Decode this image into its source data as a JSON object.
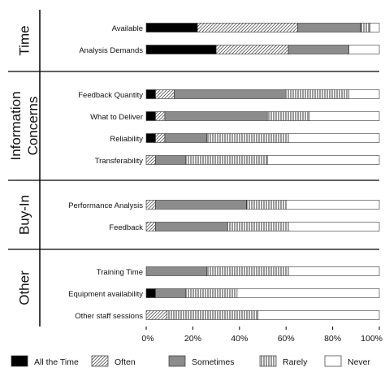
{
  "chart_data": {
    "type": "bar",
    "orientation": "horizontal",
    "stacked": true,
    "percent": true,
    "xlim": [
      0,
      100
    ],
    "xticks": [
      "0%",
      "20%",
      "40%",
      "60%",
      "80%",
      "100%"
    ],
    "grid": false,
    "legend_position": "bottom",
    "series": [
      {
        "name": "All the Time",
        "color": "#000000",
        "pattern": "solid"
      },
      {
        "name": "Often",
        "color": "#ffffff",
        "pattern": "diagonal"
      },
      {
        "name": "Sometimes",
        "color": "#8c8c8c",
        "pattern": "solid"
      },
      {
        "name": "Rarely",
        "color": "#ffffff",
        "pattern": "vertical"
      },
      {
        "name": "Never",
        "color": "#ffffff",
        "pattern": "solid"
      }
    ],
    "groups": [
      {
        "name": "Time",
        "rows": [
          {
            "label": "Available",
            "values": [
              22,
              43,
              27,
              4,
              4
            ]
          },
          {
            "label": "Analysis Demands",
            "values": [
              30,
              31,
              26,
              0,
              13
            ]
          }
        ]
      },
      {
        "name": "Information Concerns",
        "rows": [
          {
            "label": "Feedback Quantity",
            "values": [
              4,
              8,
              48,
              27,
              13
            ]
          },
          {
            "label": "What to Deliver",
            "values": [
              4,
              4,
              44,
              18,
              30
            ]
          },
          {
            "label": "Reliability",
            "values": [
              4,
              4,
              18,
              35,
              39
            ]
          },
          {
            "label": "Transferability",
            "values": [
              0,
              4,
              13,
              35,
              48
            ]
          }
        ]
      },
      {
        "name": "Buy-In",
        "rows": [
          {
            "label": "Performance Analysis",
            "values": [
              0,
              4,
              39,
              17,
              40
            ]
          },
          {
            "label": "Feedback",
            "values": [
              0,
              4,
              31,
              26,
              39
            ]
          }
        ]
      },
      {
        "name": "Other",
        "rows": [
          {
            "label": "Training Time",
            "values": [
              0,
              0,
              26,
              35,
              39
            ]
          },
          {
            "label": "Equipment availability",
            "values": [
              4,
              0,
              13,
              22,
              61
            ]
          },
          {
            "label": "Other staff sessions",
            "values": [
              0,
              9,
              0,
              39,
              52
            ]
          }
        ]
      }
    ]
  }
}
